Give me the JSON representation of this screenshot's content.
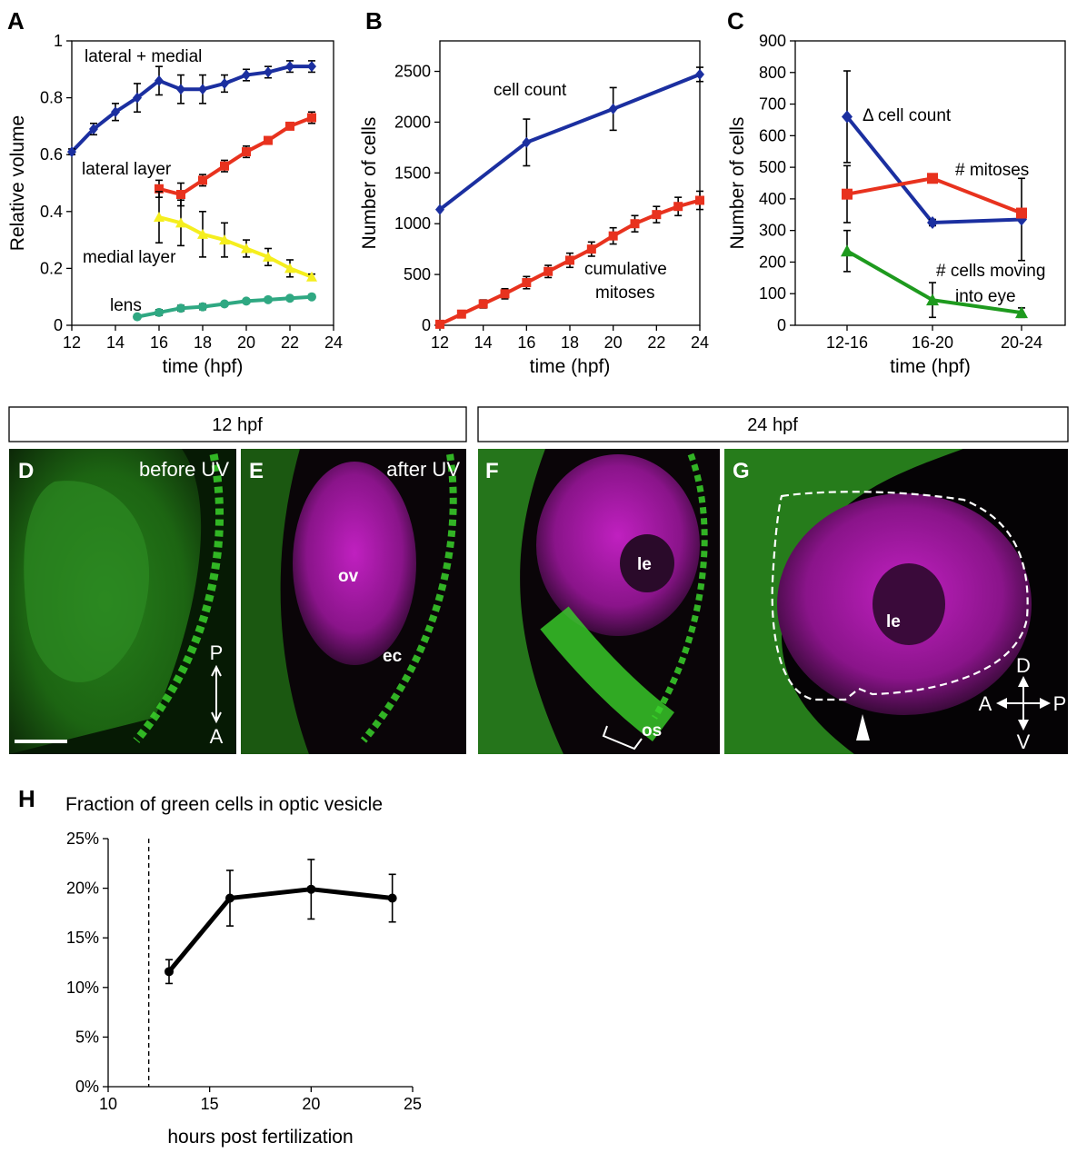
{
  "panels": {
    "A": "A",
    "B": "B",
    "C": "C",
    "D": "D",
    "E": "E",
    "F": "F",
    "G": "G",
    "H": "H"
  },
  "headers": {
    "left": "12 hpf",
    "right": "24 hpf"
  },
  "micro": {
    "D": {
      "label": "before UV",
      "p": "P",
      "a": "A"
    },
    "E": {
      "label": "after UV",
      "ov": "ov",
      "ec": "ec"
    },
    "F": {
      "le": "le",
      "os": "os"
    },
    "G": {
      "le": "le",
      "d": "D",
      "v": "V",
      "a": "A",
      "p": "P"
    }
  },
  "colors": {
    "blue": "#1b2fa0",
    "red": "#e8321e",
    "yellow": "#f5ee1e",
    "teal": "#2fa882",
    "green": "#1e9a1e",
    "black": "#000000"
  },
  "chart_data": [
    {
      "id": "A",
      "type": "line",
      "title": "",
      "xlabel": "time (hpf)",
      "ylabel": "Relative volume",
      "xlim": [
        12,
        24
      ],
      "ylim": [
        0,
        1
      ],
      "xticks": [
        12,
        14,
        16,
        18,
        20,
        22,
        24
      ],
      "yticks": [
        0,
        0.2,
        0.4,
        0.6,
        0.8,
        1
      ],
      "ytick_labels": [
        "0",
        "0.2",
        "0.4",
        "0.6",
        "0.8",
        "1"
      ],
      "series": [
        {
          "name": "lateral + medial",
          "color": "#1b2fa0",
          "marker": "diamond",
          "x": [
            12,
            13,
            14,
            15,
            16,
            17,
            18,
            19,
            20,
            21,
            22,
            23
          ],
          "y": [
            0.61,
            0.69,
            0.75,
            0.8,
            0.86,
            0.83,
            0.83,
            0.85,
            0.88,
            0.89,
            0.91,
            0.91
          ],
          "err": [
            0.01,
            0.02,
            0.03,
            0.05,
            0.05,
            0.05,
            0.05,
            0.03,
            0.02,
            0.02,
            0.02,
            0.02
          ]
        },
        {
          "name": "lateral layer",
          "color": "#e8321e",
          "marker": "square",
          "x": [
            16,
            17,
            18,
            19,
            20,
            21,
            22,
            23
          ],
          "y": [
            0.48,
            0.46,
            0.51,
            0.56,
            0.61,
            0.65,
            0.7,
            0.73
          ],
          "err": [
            0.03,
            0.04,
            0.02,
            0.02,
            0.02,
            0.01,
            0.01,
            0.02
          ]
        },
        {
          "name": "medial layer",
          "color": "#f5ee1e",
          "marker": "triangle",
          "x": [
            16,
            17,
            18,
            19,
            20,
            21,
            22,
            23
          ],
          "y": [
            0.38,
            0.36,
            0.32,
            0.3,
            0.27,
            0.24,
            0.2,
            0.17
          ],
          "err": [
            0.09,
            0.08,
            0.08,
            0.06,
            0.03,
            0.03,
            0.03,
            0.01
          ]
        },
        {
          "name": "lens",
          "color": "#2fa882",
          "marker": "circle",
          "x": [
            15,
            16,
            17,
            18,
            19,
            20,
            21,
            22,
            23
          ],
          "y": [
            0.03,
            0.045,
            0.06,
            0.065,
            0.075,
            0.085,
            0.09,
            0.095,
            0.1
          ],
          "err": [
            0.0,
            0.01,
            0.01,
            0.01,
            0.005,
            0.005,
            0.005,
            0.005,
            0.005
          ]
        }
      ]
    },
    {
      "id": "B",
      "type": "line",
      "title": "",
      "xlabel": "time (hpf)",
      "ylabel": "Number of cells",
      "xlim": [
        12,
        24
      ],
      "ylim": [
        0,
        2800
      ],
      "xticks": [
        12,
        14,
        16,
        18,
        20,
        22,
        24
      ],
      "yticks": [
        0,
        500,
        1000,
        1500,
        2000,
        2500
      ],
      "ytick_labels": [
        "0",
        "500",
        "1000",
        "1500",
        "2000",
        "2500"
      ],
      "series": [
        {
          "name": "cell count",
          "color": "#1b2fa0",
          "marker": "diamond",
          "x": [
            12,
            16,
            20,
            24
          ],
          "y": [
            1140,
            1800,
            2130,
            2470
          ],
          "err": [
            0,
            230,
            210,
            70
          ]
        },
        {
          "name": "cumulative mitoses",
          "color": "#e8321e",
          "marker": "square",
          "x": [
            12,
            13,
            14,
            15,
            16,
            17,
            18,
            19,
            20,
            21,
            22,
            23,
            24
          ],
          "y": [
            10,
            110,
            210,
            310,
            420,
            530,
            640,
            750,
            880,
            1000,
            1090,
            1170,
            1230
          ],
          "err": [
            10,
            20,
            40,
            50,
            60,
            60,
            70,
            70,
            80,
            80,
            80,
            90,
            90
          ]
        }
      ]
    },
    {
      "id": "C",
      "type": "line",
      "title": "",
      "xlabel": "time (hpf)",
      "ylabel": "Number of cells",
      "ylim": [
        0,
        900
      ],
      "categories": [
        "12-16",
        "16-20",
        "20-24"
      ],
      "yticks": [
        0,
        100,
        200,
        300,
        400,
        500,
        600,
        700,
        800,
        900
      ],
      "ytick_labels": [
        "0",
        "100",
        "200",
        "300",
        "400",
        "500",
        "600",
        "700",
        "800",
        "900"
      ],
      "series": [
        {
          "name": "Δ cell count",
          "color": "#1b2fa0",
          "marker": "diamond",
          "values": [
            660,
            325,
            335
          ],
          "err": [
            145,
            10,
            130
          ]
        },
        {
          "name": "# mitoses",
          "color": "#e8321e",
          "marker": "square",
          "values": [
            415,
            465,
            355
          ],
          "err": [
            90,
            0,
            0
          ]
        },
        {
          "name": "# cells moving into eye",
          "color": "#1e9a1e",
          "marker": "triangle",
          "values": [
            235,
            80,
            40
          ],
          "err": [
            65,
            55,
            15
          ]
        }
      ],
      "labels": {
        "delta": "Δ cell count",
        "mitoses": "# mitoses",
        "moving1": "# cells moving",
        "moving2": "into eye"
      }
    },
    {
      "id": "H",
      "type": "line",
      "title": "Fraction of green cells in optic vesicle",
      "xlabel": "hours post fertilization",
      "ylabel": "",
      "xlim": [
        10,
        25
      ],
      "ylim": [
        0,
        25
      ],
      "xticks": [
        10,
        15,
        20,
        25
      ],
      "yticks": [
        0,
        5,
        10,
        15,
        20,
        25
      ],
      "ytick_labels": [
        "0%",
        "5%",
        "10%",
        "15%",
        "20%",
        "25%"
      ],
      "dashed_vline_x": 12,
      "series": [
        {
          "name": "",
          "color": "#000000",
          "marker": "circle",
          "x": [
            13,
            16,
            20,
            24
          ],
          "y": [
            11.6,
            19.0,
            19.9,
            19.0
          ],
          "err": [
            1.2,
            2.8,
            3.0,
            2.4
          ]
        }
      ]
    }
  ]
}
